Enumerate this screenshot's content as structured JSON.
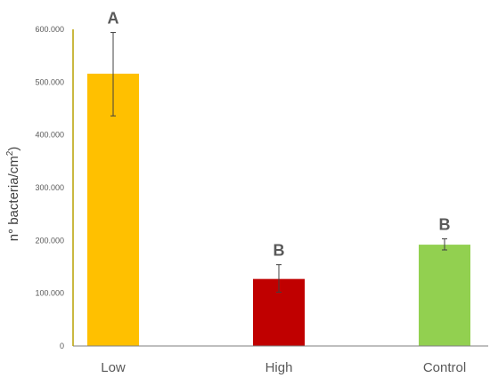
{
  "chart_data": {
    "type": "bar",
    "categories": [
      "Low",
      "High",
      "Control"
    ],
    "values": [
      516000,
      127000,
      192000
    ],
    "error_bars": [
      {
        "low": 436000,
        "high": 594000
      },
      {
        "low": 102000,
        "high": 154000
      },
      {
        "low": 182000,
        "high": 203000
      }
    ],
    "significance_letters": [
      "A",
      "B",
      "B"
    ],
    "bar_colors": [
      "#FFC000",
      "#C00000",
      "#92D050"
    ],
    "ylabel_main": "n° bacteria/cm",
    "ylabel_sup": "2",
    "ylabel_close": ")",
    "ylim": [
      0,
      600000
    ],
    "yticks": [
      0,
      100000,
      200000,
      300000,
      400000,
      500000,
      600000
    ],
    "ytick_labels": [
      "0",
      "100.000",
      "200.000",
      "300.000",
      "400.000",
      "500.000",
      "600.000"
    ],
    "grid": false,
    "colors": {
      "axis": "#7f7f7f",
      "y_axis_line": "#b8a000",
      "tick_text": "#595959",
      "letter_text": "#595959",
      "error_bar": "#404040"
    }
  }
}
